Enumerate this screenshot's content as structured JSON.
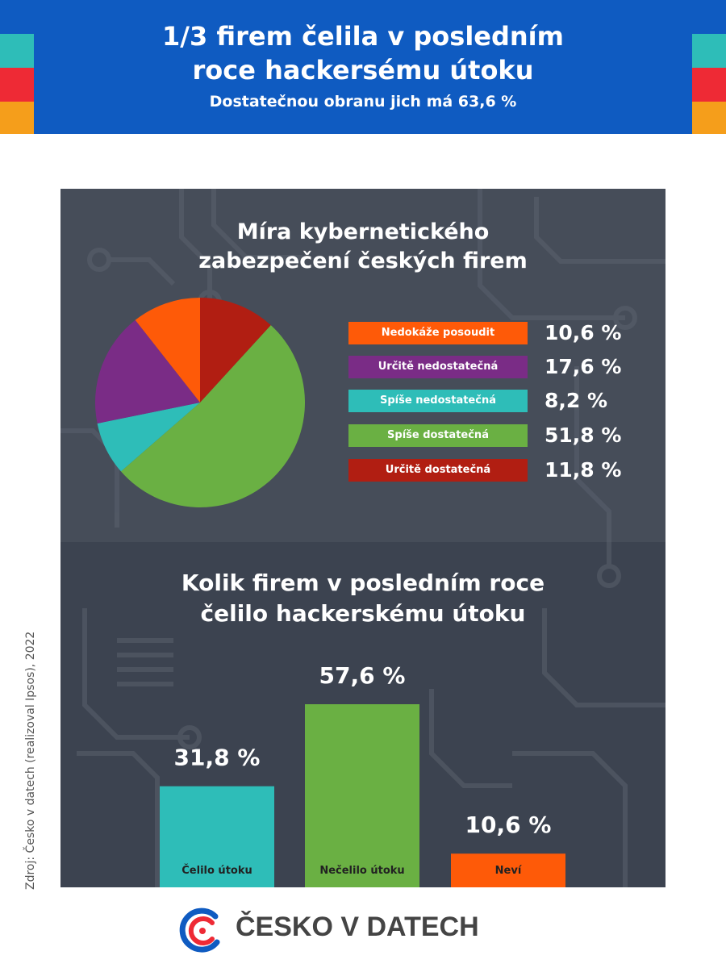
{
  "header": {
    "title_line1": "1/3 firem čelila v posledním",
    "title_line2": "roce hackersému útoku",
    "subtitle": "Dostatečnou obranu jich má 63,6 %"
  },
  "colors": {
    "header_blue": "#0f5bc1",
    "teal": "#2ebdb8",
    "red": "#ee2a35",
    "orange": "#f59e1b",
    "panel": "#3c4350"
  },
  "chart_data": [
    {
      "type": "pie",
      "title_line1": "Míra kybernetického",
      "title_line2": "zabezpečení českých firem",
      "slices": [
        {
          "label": "Nedokáže posoudit",
          "value": 10.6,
          "value_label": "10,6 %",
          "color": "#fe5a08"
        },
        {
          "label": "Určitě nedostatečná",
          "value": 17.6,
          "value_label": "17,6 %",
          "color": "#7a2c86"
        },
        {
          "label": "Spíše nedostatečná",
          "value": 8.2,
          "value_label": "8,2 %",
          "color": "#2ebdb8"
        },
        {
          "label": "Spíše dostatečná",
          "value": 51.8,
          "value_label": "51,8 %",
          "color": "#6ab043"
        },
        {
          "label": "Určitě dostatečná",
          "value": 11.8,
          "value_label": "11,8 %",
          "color": "#b11e12"
        }
      ]
    },
    {
      "type": "bar",
      "title_line1": "Kolik firem v posledním roce",
      "title_line2": "čelilo hackerskému útoku",
      "categories": [
        "Čelilo útoku",
        "Nečelilo útoku",
        "Neví"
      ],
      "values": [
        31.8,
        57.6,
        10.6
      ],
      "value_labels": [
        "31,8 %",
        "57,6 %",
        "10,6 %"
      ],
      "colors": [
        "#2ebdb8",
        "#6ab043",
        "#fe5a08"
      ],
      "ylim": [
        0,
        100
      ]
    }
  ],
  "source": "Zdroj: Česko v datech (realizoval Ipsos), 2022",
  "logo": {
    "text": "ČESKO V DATECH",
    "icon": "cv-datech-logo-icon"
  }
}
